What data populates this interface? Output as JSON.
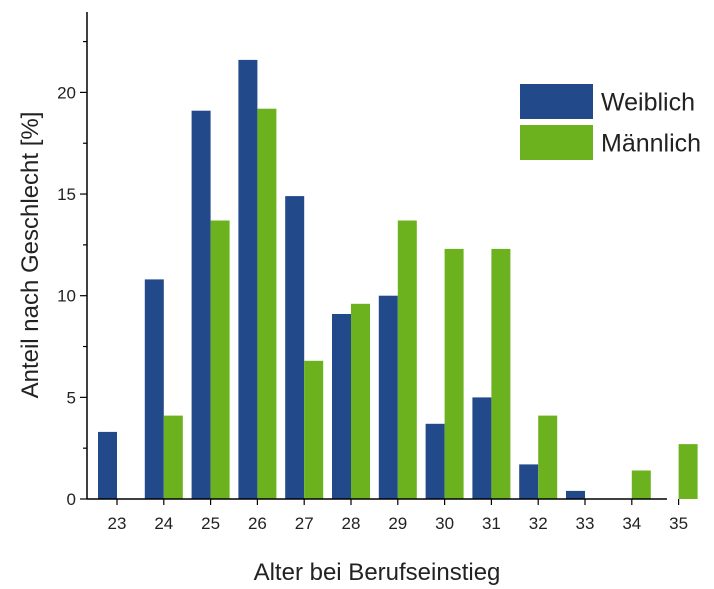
{
  "chart_data": {
    "type": "bar",
    "categories": [
      "23",
      "24",
      "25",
      "26",
      "27",
      "28",
      "29",
      "30",
      "31",
      "32",
      "33",
      "34",
      "35"
    ],
    "series": [
      {
        "name": "Weiblich",
        "color": "#22498a",
        "values": [
          3.3,
          10.8,
          19.1,
          21.6,
          14.9,
          9.1,
          10.0,
          3.7,
          5.0,
          1.7,
          0.4,
          0.0,
          0.0
        ]
      },
      {
        "name": "Männlich",
        "color": "#6cb21e",
        "values": [
          0.0,
          4.1,
          13.7,
          19.2,
          6.8,
          9.6,
          13.7,
          12.3,
          12.3,
          4.1,
          0.0,
          1.4,
          2.7
        ]
      }
    ],
    "xlabel": "Alter bei Berufseinstieg",
    "ylabel": "Anteil nach Geschlecht [%]",
    "ylim": [
      0,
      23
    ],
    "yticks": [
      0,
      5,
      10,
      15,
      20
    ],
    "grid": false,
    "legend_position": "top-right"
  }
}
